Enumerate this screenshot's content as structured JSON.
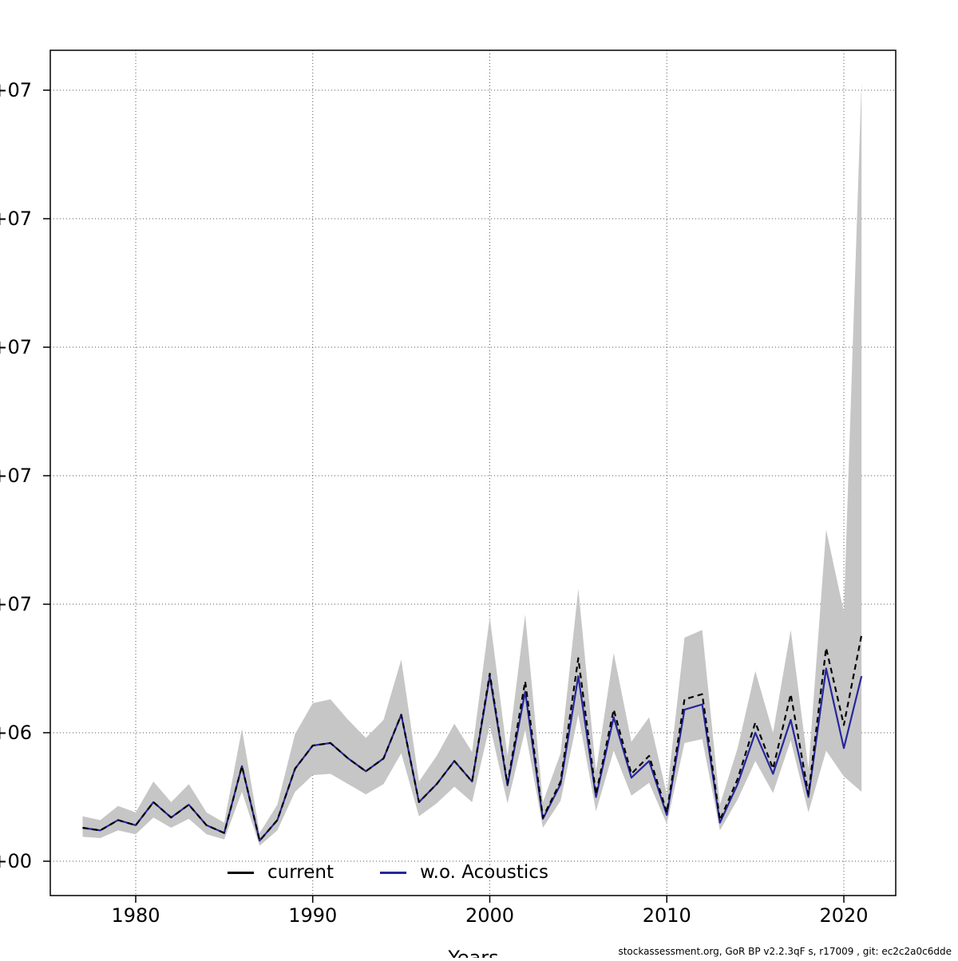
{
  "figure": {
    "background": "#ffffff",
    "caption": "stockassessment.org, GoR BP v2.2.3qF s, r17009 , git: ec2c2a0c6dde",
    "xlabel": "Years"
  },
  "legend": {
    "items": [
      {
        "label": "current",
        "color": "#000000"
      },
      {
        "label": "w.o. Acoustics",
        "color": "#26269c"
      }
    ]
  },
  "chart_data": {
    "type": "line",
    "title": "",
    "xlabel": "Years",
    "ylabel": "",
    "grid": "dotted",
    "legend_position": "bottom-inside",
    "xlim": [
      1976.3,
      2022
    ],
    "ylim": [
      -1300000,
      31800000
    ],
    "x_ticks": [
      1980,
      1990,
      2000,
      2010,
      2020
    ],
    "y_ticks": [
      {
        "value": 0,
        "label": "+00"
      },
      {
        "value": 5000000,
        "label": "+06"
      },
      {
        "value": 10000000,
        "label": "+07"
      },
      {
        "value": 15000000,
        "label": "+07"
      },
      {
        "value": 20000000,
        "label": "+07"
      },
      {
        "value": 25000000,
        "label": "+07"
      },
      {
        "value": 30000000,
        "label": "+07"
      }
    ],
    "band_color": "#c6c6c6",
    "years": [
      1977,
      1978,
      1979,
      1980,
      1981,
      1982,
      1983,
      1984,
      1985,
      1986,
      1987,
      1988,
      1989,
      1990,
      1991,
      1992,
      1993,
      1994,
      1995,
      1996,
      1997,
      1998,
      1999,
      2000,
      2001,
      2002,
      2003,
      2004,
      2005,
      2006,
      2007,
      2008,
      2009,
      2010,
      2011,
      2012,
      2013,
      2014,
      2015,
      2016,
      2017,
      2018,
      2019,
      2020,
      2021
    ],
    "series": [
      {
        "name": "current",
        "color": "#000000",
        "dashed": true,
        "values": [
          1300000,
          1200000,
          1600000,
          1400000,
          2300000,
          1700000,
          2200000,
          1400000,
          1100000,
          3700000,
          800000,
          1600000,
          3600000,
          4500000,
          4600000,
          4000000,
          3500000,
          4000000,
          5700000,
          2300000,
          3000000,
          3900000,
          3100000,
          7300000,
          3000000,
          7000000,
          1700000,
          3100000,
          7900000,
          2600000,
          5900000,
          3400000,
          4100000,
          1900000,
          6300000,
          6500000,
          1600000,
          3200000,
          5400000,
          3600000,
          6500000,
          2600000,
          8300000,
          5300000,
          8800000
        ]
      },
      {
        "name": "w.o. Acoustics",
        "color": "#26269c",
        "dashed": false,
        "values": [
          1300000,
          1200000,
          1600000,
          1400000,
          2300000,
          1700000,
          2200000,
          1400000,
          1100000,
          3700000,
          800000,
          1600000,
          3600000,
          4500000,
          4600000,
          4000000,
          3500000,
          4000000,
          5700000,
          2300000,
          3000000,
          3900000,
          3100000,
          7200000,
          2950000,
          6600000,
          1650000,
          3000000,
          7200000,
          2500000,
          5600000,
          3250000,
          3900000,
          1800000,
          5900000,
          6100000,
          1500000,
          3000000,
          5000000,
          3400000,
          5500000,
          2500000,
          7500000,
          4400000,
          7200000
        ]
      }
    ],
    "band": {
      "series": "current",
      "lower": [
        950000,
        900000,
        1200000,
        1050000,
        1700000,
        1300000,
        1650000,
        1050000,
        850000,
        2700000,
        600000,
        1200000,
        2700000,
        3350000,
        3400000,
        3000000,
        2600000,
        3000000,
        4200000,
        1750000,
        2250000,
        2900000,
        2300000,
        5300000,
        2250000,
        5100000,
        1300000,
        2350000,
        5700000,
        1950000,
        4300000,
        2550000,
        3050000,
        1450000,
        4600000,
        4750000,
        1200000,
        2400000,
        3900000,
        2650000,
        4700000,
        1900000,
        4300000,
        3300000,
        2700000
      ],
      "upper": [
        1750000,
        1600000,
        2150000,
        1900000,
        3100000,
        2300000,
        3000000,
        1900000,
        1500000,
        5150000,
        1100000,
        2200000,
        4950000,
        6150000,
        6300000,
        5500000,
        4800000,
        5500000,
        7850000,
        3100000,
        4100000,
        5350000,
        4250000,
        9500000,
        4100000,
        9600000,
        2300000,
        4200000,
        10600000,
        3500000,
        8100000,
        4650000,
        5600000,
        2600000,
        8700000,
        9000000,
        2200000,
        4400000,
        7400000,
        5000000,
        9000000,
        3600000,
        12900000,
        9700000,
        30300000
      ]
    }
  }
}
